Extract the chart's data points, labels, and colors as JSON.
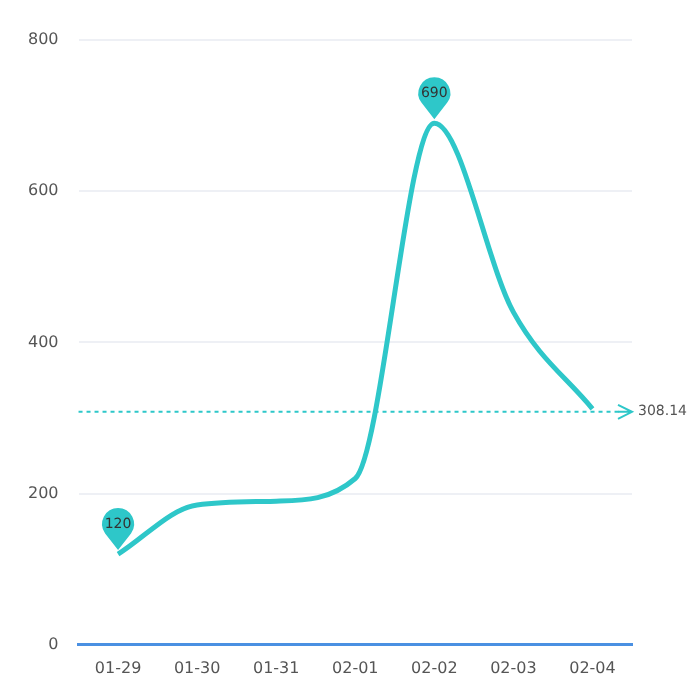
{
  "chart_data": {
    "type": "line",
    "categories": [
      "01-29",
      "01-30",
      "01-31",
      "02-01",
      "02-02",
      "02-03",
      "02-04"
    ],
    "series": [
      {
        "color": "#2ec7c9",
        "values": [
          120,
          185,
          190,
          220,
          690,
          440,
          312
        ]
      }
    ],
    "ylim": [
      0,
      800
    ],
    "yticks": [
      0,
      200,
      400,
      600,
      800
    ],
    "grid": "y",
    "marker": "none",
    "line_style": "solid",
    "ref_lines": [
      {
        "axis": "y",
        "value": 308.14,
        "label": "308.14",
        "color": "#2ec7c9",
        "line_style": "dotted"
      }
    ],
    "annotations": [
      {
        "text": "690",
        "x": "02-02",
        "y": 690
      },
      {
        "text": "120",
        "x": "01-29",
        "y": 120
      }
    ]
  }
}
